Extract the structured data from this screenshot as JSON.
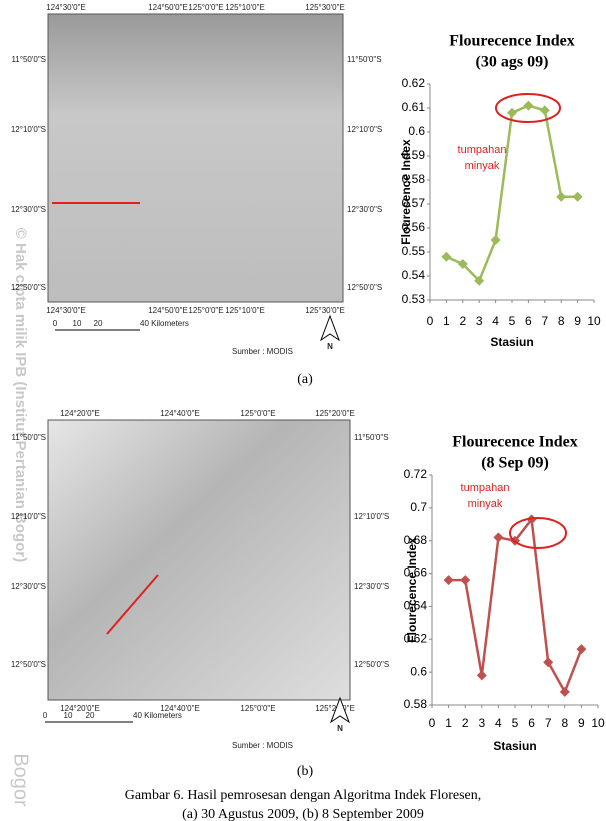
{
  "maps": [
    {
      "lon_top": [
        "124°30'0\"E",
        "124°50'0\"E",
        "125°0'0\"E",
        "125°10'0\"E",
        "125°30'0\"E"
      ],
      "lon_bottom": [
        "124°30'0\"E",
        "124°50'0\"E",
        "125°0'0\"E",
        "125°10'0\"E",
        "125°30'0\"E"
      ],
      "lat_left": [
        "11°50'0\"S",
        "12°10'0\"S",
        "12°30'0\"S",
        "12°50'0\"S"
      ],
      "lat_right": [
        "11°50'0\"S",
        "12°10'0\"S",
        "12°30'0\"S",
        "12°50'0\"S"
      ],
      "scale": [
        "0",
        "10",
        "20",
        "40 Kilometers"
      ],
      "source": "Sumber : MODIS",
      "north": "N",
      "label": "(a)"
    },
    {
      "lon_top": [
        "124°20'0\"E",
        "124°40'0\"E",
        "125°0'0\"E",
        "125°20'0\"E"
      ],
      "lon_bottom": [
        "124°20'0\"E",
        "124°40'0\"E",
        "125°0'0\"E",
        "125°20'0\"E"
      ],
      "lat_left": [
        "11°50'0\"S",
        "12°10'0\"S",
        "12°30'0\"S",
        "12°50'0\"S"
      ],
      "lat_right": [
        "11°50'0\"S",
        "12°10'0\"S",
        "12°30'0\"S",
        "12°50'0\"S"
      ],
      "scale": [
        "0",
        "10",
        "20",
        "40 Kilometers"
      ],
      "source": "Sumber : MODIS",
      "north": "N",
      "label": "(b)"
    }
  ],
  "chart_data": [
    {
      "type": "line",
      "title": "Flourecence Index",
      "subtitle": "(30 ags 09)",
      "x_label": "Stasiun",
      "y_label": "Flourecence Index",
      "x": [
        1,
        2,
        3,
        4,
        5,
        6,
        7,
        8,
        9
      ],
      "values": [
        0.548,
        0.545,
        0.538,
        0.555,
        0.608,
        0.611,
        0.609,
        0.573,
        0.573
      ],
      "color": "#9bbb59",
      "xlim": [
        0,
        10
      ],
      "xticks": [
        0,
        1,
        2,
        3,
        4,
        5,
        6,
        7,
        8,
        9,
        10
      ],
      "ylim": [
        0.53,
        0.62
      ],
      "yticks": [
        0.53,
        0.54,
        0.55,
        0.56,
        0.57,
        0.58,
        0.59,
        0.6,
        0.61,
        0.62
      ],
      "annotation": [
        "tumpahan",
        "minyak"
      ]
    },
    {
      "type": "line",
      "title": "Flourecence Index",
      "subtitle": "(8 Sep 09)",
      "x_label": "Stasiun",
      "y_label": "Flourecence Index",
      "x": [
        1,
        2,
        3,
        4,
        5,
        6,
        7,
        8,
        9
      ],
      "values": [
        0.656,
        0.656,
        0.598,
        0.682,
        0.68,
        0.693,
        0.606,
        0.588,
        0.614
      ],
      "color": "#c0504d",
      "xlim": [
        0,
        10
      ],
      "xticks": [
        0,
        1,
        2,
        3,
        4,
        5,
        6,
        7,
        8,
        9,
        10
      ],
      "ylim": [
        0.58,
        0.72
      ],
      "yticks": [
        0.58,
        0.6,
        0.62,
        0.64,
        0.66,
        0.68,
        0.7,
        0.72
      ],
      "annotation": [
        "tumpahan",
        "minyak"
      ]
    }
  ],
  "caption": [
    "Gambar 6. Hasil pemrosesan dengan Algoritma Indek Floresen,",
    "(a) 30 Agustus 2009, (b) 8 September 2009"
  ],
  "watermark": [
    "© Hak cipta milik IPB (Institut Pertanian Bogor)",
    "Bogor"
  ]
}
